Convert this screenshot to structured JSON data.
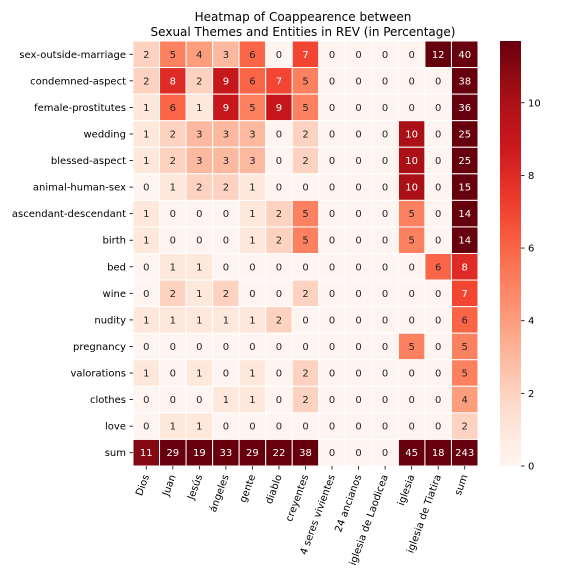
{
  "chart_data": {
    "type": "heatmap",
    "title_lines": [
      "Heatmap of Coappearence between",
      "Sexual Themes and Entities in REV (in Percentage)"
    ],
    "xlabel": "",
    "ylabel": "",
    "rows": [
      "sex-outside-marriage",
      "condemned-aspect",
      "female-prostitutes",
      "wedding",
      "blessed-aspect",
      "animal-human-sex",
      "ascendant-descendant",
      "birth",
      "bed",
      "wine",
      "nudity",
      "pregnancy",
      "valorations",
      "clothes",
      "love",
      "sum"
    ],
    "columns": [
      "Dios",
      "Juan",
      "Jesús",
      "ángeles",
      "gente",
      "diablo",
      "creyentes",
      "4 seres vivientes",
      "24 ancianos",
      "iglesia de Laodicea",
      "iglesia",
      "iglesia de Tiatira",
      "sum"
    ],
    "values": [
      [
        2,
        5,
        4,
        3,
        6,
        0,
        7,
        0,
        0,
        0,
        0,
        12,
        40
      ],
      [
        2,
        8,
        2,
        9,
        6,
        7,
        5,
        0,
        0,
        0,
        0,
        0,
        38
      ],
      [
        1,
        6,
        1,
        9,
        5,
        9,
        5,
        0,
        0,
        0,
        0,
        0,
        36
      ],
      [
        1,
        2,
        3,
        3,
        3,
        0,
        2,
        0,
        0,
        0,
        10,
        0,
        25
      ],
      [
        1,
        2,
        3,
        3,
        3,
        0,
        2,
        0,
        0,
        0,
        10,
        0,
        25
      ],
      [
        0,
        1,
        2,
        2,
        1,
        0,
        0,
        0,
        0,
        0,
        10,
        0,
        15
      ],
      [
        1,
        0,
        0,
        0,
        1,
        2,
        5,
        0,
        0,
        0,
        5,
        0,
        14
      ],
      [
        1,
        0,
        0,
        0,
        1,
        2,
        5,
        0,
        0,
        0,
        5,
        0,
        14
      ],
      [
        0,
        1,
        1,
        0,
        0,
        0,
        0,
        0,
        0,
        0,
        0,
        6,
        8
      ],
      [
        0,
        2,
        1,
        2,
        0,
        0,
        2,
        0,
        0,
        0,
        0,
        0,
        7
      ],
      [
        1,
        1,
        1,
        1,
        1,
        2,
        0,
        0,
        0,
        0,
        0,
        0,
        6
      ],
      [
        0,
        0,
        0,
        0,
        0,
        0,
        0,
        0,
        0,
        0,
        5,
        0,
        5
      ],
      [
        1,
        0,
        1,
        0,
        1,
        0,
        2,
        0,
        0,
        0,
        0,
        0,
        5
      ],
      [
        0,
        0,
        0,
        1,
        1,
        0,
        2,
        0,
        0,
        0,
        0,
        0,
        4
      ],
      [
        0,
        1,
        1,
        0,
        0,
        0,
        0,
        0,
        0,
        0,
        0,
        0,
        2
      ],
      [
        11,
        29,
        19,
        33,
        29,
        22,
        38,
        0,
        0,
        0,
        45,
        18,
        243
      ]
    ],
    "colorbar": {
      "cmap": "Reds",
      "vmin": 0,
      "vmax": 11.7,
      "ticks": [
        0,
        2,
        4,
        6,
        8,
        10
      ]
    },
    "grid": "white cell borders",
    "legend": "colorbar right"
  }
}
